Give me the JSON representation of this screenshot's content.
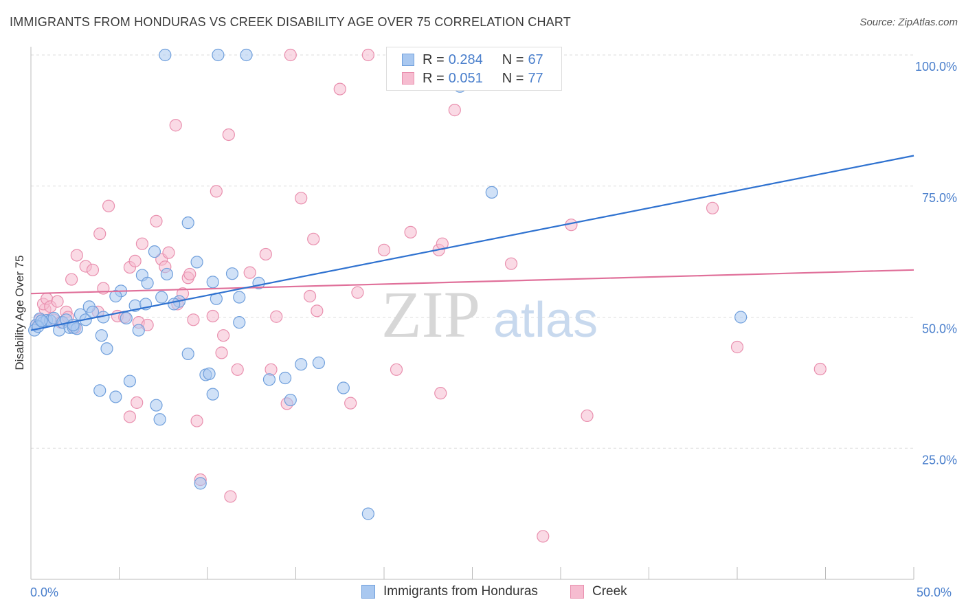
{
  "title": "IMMIGRANTS FROM HONDURAS VS CREEK DISABILITY AGE OVER 75 CORRELATION CHART",
  "source": "Source: ZipAtlas.com",
  "watermark": {
    "zip": "ZIP",
    "atlas": "atlas"
  },
  "legend": [
    {
      "r_label": "R =",
      "r_value": "0.284",
      "n_label": "N =",
      "n_value": "67"
    },
    {
      "r_label": "R =",
      "r_value": "0.051",
      "n_label": "N =",
      "n_value": "77"
    }
  ],
  "bottom_legend": [
    "Immigrants from Honduras",
    "Creek"
  ],
  "colors": {
    "blue_fill": "#a9c8f0",
    "blue_stroke": "#6f9fdc",
    "blue_line": "#2f72d0",
    "pink_fill": "#f6bcd0",
    "pink_stroke": "#e98fae",
    "pink_line": "#e0709a",
    "tick_text": "#4a7fcc",
    "grid": "#dddddd"
  },
  "chart_data": {
    "type": "scatter",
    "title": "IMMIGRANTS FROM HONDURAS VS CREEK DISABILITY AGE OVER 75 CORRELATION CHART",
    "xlabel": "",
    "ylabel": "Disability Age Over 75",
    "xlim": [
      0,
      50
    ],
    "ylim": [
      0,
      100
    ],
    "x_tick_labels": [
      "0.0%",
      "50.0%"
    ],
    "y_tick_labels": [
      "100.0%",
      "75.0%",
      "50.0%",
      "25.0%"
    ],
    "y_ticks": [
      100,
      75,
      50,
      25
    ],
    "grid": true,
    "legend_position": "top-center",
    "series": [
      {
        "name": "Immigrants from Honduras",
        "color": "#a9c8f0",
        "trend": {
          "x": [
            0,
            50
          ],
          "y": [
            47.5,
            80.8
          ]
        },
        "points": [
          [
            0.3,
            48.5
          ],
          [
            0.5,
            49.7
          ],
          [
            0.7,
            49
          ],
          [
            0.9,
            49.4
          ],
          [
            1.1,
            49.3
          ],
          [
            1.3,
            49.8
          ],
          [
            1.6,
            47.5
          ],
          [
            1.8,
            49
          ],
          [
            2.0,
            49.5
          ],
          [
            2.2,
            48
          ],
          [
            2.4,
            48
          ],
          [
            2.6,
            47.8
          ],
          [
            2.8,
            50.5
          ],
          [
            3.1,
            49.5
          ],
          [
            3.3,
            52
          ],
          [
            3.5,
            51
          ],
          [
            4.0,
            46.5
          ],
          [
            4.3,
            44
          ],
          [
            4.1,
            50
          ],
          [
            5.1,
            55
          ],
          [
            4.8,
            54
          ],
          [
            5.4,
            49.8
          ],
          [
            5.9,
            52.2
          ],
          [
            6.1,
            47.5
          ],
          [
            6.3,
            58
          ],
          [
            6.5,
            52.5
          ],
          [
            6.6,
            56.5
          ],
          [
            7.0,
            62.5
          ],
          [
            7.4,
            53.8
          ],
          [
            7.7,
            58.2
          ],
          [
            8.4,
            53
          ],
          [
            8.1,
            52.5
          ],
          [
            8.9,
            68
          ],
          [
            9.4,
            60.5
          ],
          [
            10.3,
            56.7
          ],
          [
            10.5,
            53.5
          ],
          [
            11.4,
            58.3
          ],
          [
            11.8,
            53.8
          ],
          [
            12.9,
            56.5
          ],
          [
            11.8,
            49
          ],
          [
            3.9,
            36
          ],
          [
            4.8,
            34.8
          ],
          [
            5.6,
            37.8
          ],
          [
            7.1,
            33.2
          ],
          [
            7.3,
            30.5
          ],
          [
            8.9,
            43
          ],
          [
            9.9,
            39
          ],
          [
            10.1,
            39.2
          ],
          [
            10.3,
            35.3
          ],
          [
            13.5,
            38.1
          ],
          [
            14.4,
            38.4
          ],
          [
            14.7,
            34.2
          ],
          [
            15.3,
            41
          ],
          [
            16.3,
            41.3
          ],
          [
            17.7,
            36.5
          ],
          [
            9.6,
            18.3
          ],
          [
            19.1,
            12.5
          ],
          [
            7.6,
            100
          ],
          [
            10.6,
            100
          ],
          [
            12.2,
            100
          ],
          [
            24.3,
            94
          ],
          [
            26.1,
            73.8
          ],
          [
            40.2,
            50
          ],
          [
            0.2,
            47.5
          ],
          [
            0.4,
            48.2
          ],
          [
            0.6,
            49.3
          ],
          [
            2.4,
            48.5
          ]
        ]
      },
      {
        "name": "Creek",
        "color": "#f6bcd0",
        "trend": {
          "x": [
            0,
            50
          ],
          "y": [
            54.5,
            59
          ]
        },
        "points": [
          [
            0.3,
            48.5
          ],
          [
            0.5,
            49.5
          ],
          [
            0.8,
            51.5
          ],
          [
            0.7,
            52.5
          ],
          [
            0.9,
            53.5
          ],
          [
            1.1,
            52
          ],
          [
            1.3,
            49.5
          ],
          [
            1.5,
            53
          ],
          [
            1.7,
            49
          ],
          [
            2.0,
            51
          ],
          [
            2.1,
            50
          ],
          [
            2.5,
            48
          ],
          [
            2.3,
            57.2
          ],
          [
            2.6,
            61.8
          ],
          [
            3.1,
            59.7
          ],
          [
            3.5,
            59
          ],
          [
            3.8,
            51
          ],
          [
            4.1,
            55.5
          ],
          [
            3.9,
            65.9
          ],
          [
            4.4,
            71.2
          ],
          [
            4.9,
            50.2
          ],
          [
            5.6,
            59.5
          ],
          [
            5.9,
            60.7
          ],
          [
            5.3,
            50
          ],
          [
            6.1,
            49
          ],
          [
            6.3,
            64
          ],
          [
            6.6,
            48.5
          ],
          [
            7.1,
            68.3
          ],
          [
            7.4,
            61
          ],
          [
            7.6,
            59.6
          ],
          [
            7.8,
            62.3
          ],
          [
            8.2,
            86.6
          ],
          [
            8.6,
            54.5
          ],
          [
            8.9,
            57.5
          ],
          [
            9.0,
            58.2
          ],
          [
            8.3,
            52.5
          ],
          [
            9.2,
            49.5
          ],
          [
            10.3,
            50.2
          ],
          [
            10.5,
            74
          ],
          [
            10.9,
            46.5
          ],
          [
            11.2,
            84.8
          ],
          [
            11.7,
            40
          ],
          [
            10.8,
            43.2
          ],
          [
            12.4,
            58.5
          ],
          [
            13.3,
            62
          ],
          [
            13.9,
            50.1
          ],
          [
            14.5,
            33.5
          ],
          [
            15.3,
            72.7
          ],
          [
            15.8,
            54
          ],
          [
            16.0,
            64.9
          ],
          [
            16.2,
            51.2
          ],
          [
            17.5,
            93.5
          ],
          [
            18.1,
            33.6
          ],
          [
            18.5,
            54.7
          ],
          [
            20.0,
            62.8
          ],
          [
            20.7,
            40
          ],
          [
            21.5,
            66.2
          ],
          [
            23.1,
            62.8
          ],
          [
            23.3,
            64
          ],
          [
            24.0,
            89.5
          ],
          [
            24.4,
            100
          ],
          [
            14.7,
            100
          ],
          [
            19.1,
            100
          ],
          [
            23.2,
            35.5
          ],
          [
            27.2,
            60.2
          ],
          [
            30.6,
            67.6
          ],
          [
            31.5,
            31.2
          ],
          [
            38.6,
            70.8
          ],
          [
            40.0,
            44.3
          ],
          [
            44.7,
            40.1
          ],
          [
            6.0,
            33.7
          ],
          [
            5.6,
            31
          ],
          [
            9.4,
            30.2
          ],
          [
            9.6,
            19
          ],
          [
            11.3,
            15.8
          ],
          [
            29.0,
            8.2
          ],
          [
            13.6,
            40
          ]
        ]
      }
    ]
  }
}
